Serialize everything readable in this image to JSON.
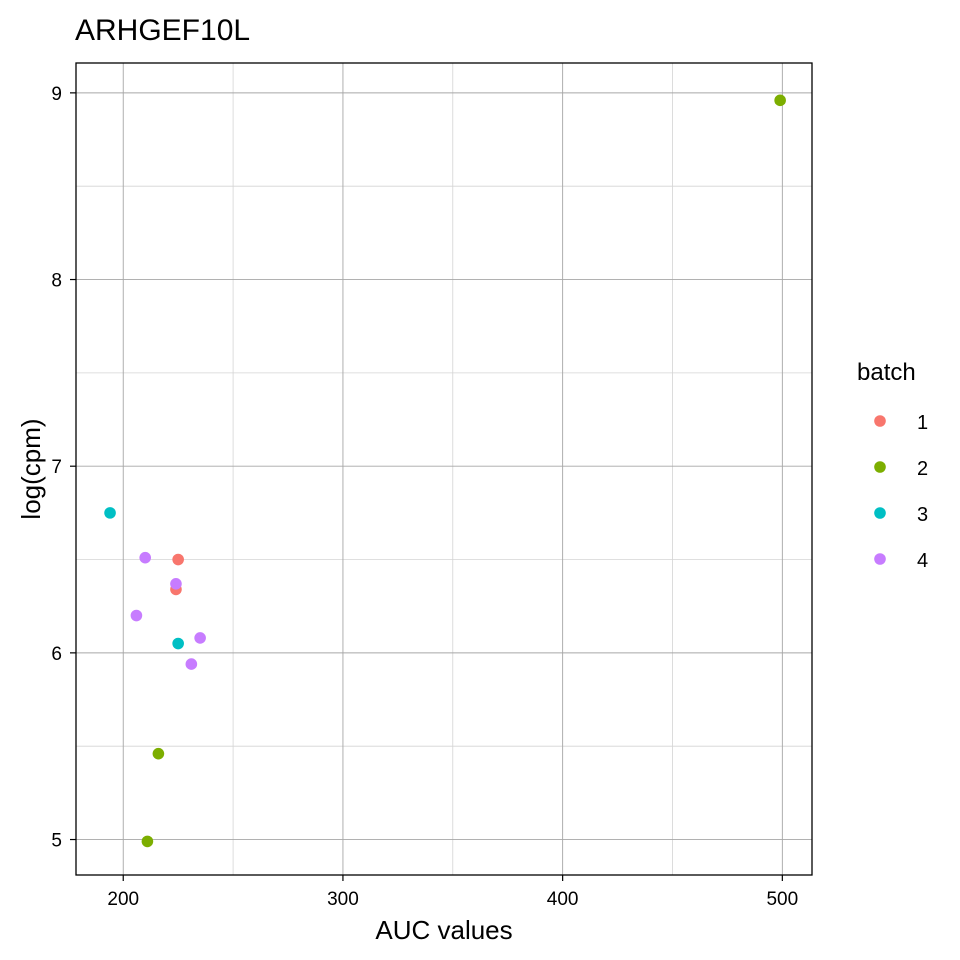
{
  "chart_data": {
    "type": "scatter",
    "title": "ARHGEF10L",
    "xlabel": "AUC values",
    "ylabel": "log(cpm)",
    "xlim": [
      178.5,
      513.5
    ],
    "ylim": [
      4.81,
      9.16
    ],
    "x_ticks": [
      200,
      300,
      400,
      500
    ],
    "y_ticks": [
      5,
      6,
      7,
      8,
      9
    ],
    "grid": true,
    "legend": {
      "title": "batch",
      "position": "right",
      "entries": [
        {
          "label": "1",
          "color": "#F8766D"
        },
        {
          "label": "2",
          "color": "#7CAE00"
        },
        {
          "label": "3",
          "color": "#00BFC4"
        },
        {
          "label": "4",
          "color": "#C77CFF"
        }
      ]
    },
    "series": [
      {
        "name": "1",
        "color": "#F8766D",
        "points": [
          {
            "x": 225,
            "y": 6.5
          },
          {
            "x": 224,
            "y": 6.34
          }
        ]
      },
      {
        "name": "2",
        "color": "#7CAE00",
        "points": [
          {
            "x": 499,
            "y": 8.96
          },
          {
            "x": 216,
            "y": 5.46
          },
          {
            "x": 211,
            "y": 4.99
          }
        ]
      },
      {
        "name": "3",
        "color": "#00BFC4",
        "points": [
          {
            "x": 194,
            "y": 6.75
          },
          {
            "x": 225,
            "y": 6.05
          }
        ]
      },
      {
        "name": "4",
        "color": "#C77CFF",
        "points": [
          {
            "x": 210,
            "y": 6.51
          },
          {
            "x": 224,
            "y": 6.37
          },
          {
            "x": 206,
            "y": 6.2
          },
          {
            "x": 235,
            "y": 6.08
          },
          {
            "x": 231,
            "y": 5.94
          }
        ]
      }
    ]
  }
}
